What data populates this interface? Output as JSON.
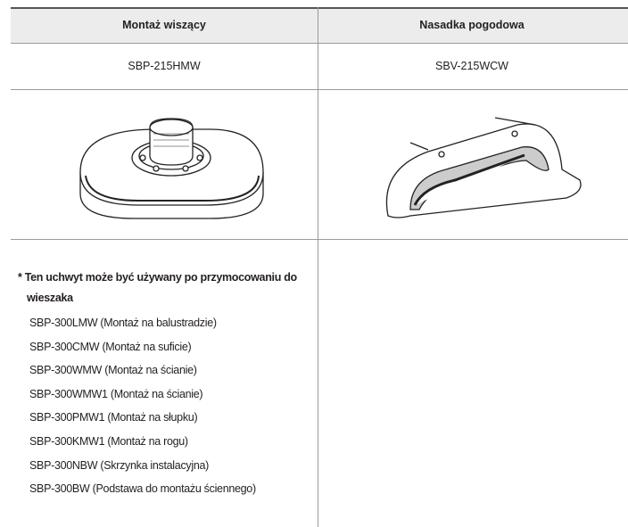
{
  "table": {
    "headers": [
      "Montaż wiszący",
      "Nasadka pogodowa"
    ],
    "models": [
      "SBP-215HMW",
      "SBV-215WCW"
    ]
  },
  "note": {
    "text": "* Ten uchwyt może być używany po przymocowaniu do wieszaka",
    "items": [
      "SBP-300LMW (Montaż na balustradzie)",
      "SBP-300CMW (Montaż na suficie)",
      "SBP-300WMW (Montaż na ścianie)",
      "SBP-300WMW1 (Montaż na ścianie)",
      "SBP-300PMW1 (Montaż na słupku)",
      "SBP-300KMW1 (Montaż na rogu)",
      "SBP-300NBW (Skrzynka instalacyjna)",
      "SBP-300BW (Podstawa do montażu ściennego)"
    ]
  }
}
